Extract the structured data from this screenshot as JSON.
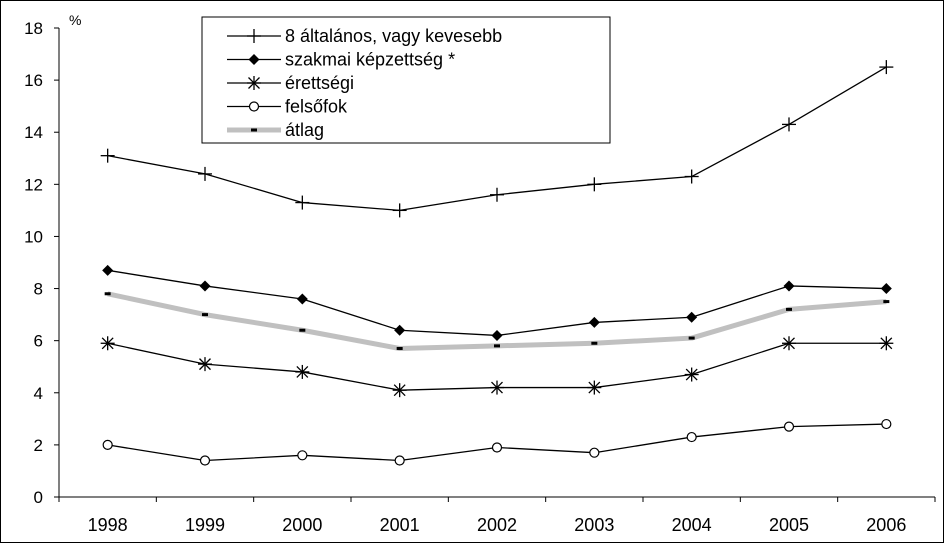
{
  "chart_data": {
    "type": "line",
    "title": "",
    "xlabel": "",
    "ylabel": "%",
    "x": [
      "1998",
      "1999",
      "2000",
      "2001",
      "2002",
      "2003",
      "2004",
      "2005",
      "2006"
    ],
    "ylim": [
      0,
      18
    ],
    "yticks": [
      "0",
      "2",
      "4",
      "6",
      "8",
      "10",
      "12",
      "14",
      "16",
      "18"
    ],
    "grid": false,
    "legend_position": "top-center",
    "series": [
      {
        "name": "8 általános, vagy kevesebb",
        "marker": "plus",
        "color": "#000000",
        "values": [
          13.1,
          12.4,
          11.3,
          11.0,
          11.6,
          12.0,
          12.3,
          14.3,
          16.5
        ]
      },
      {
        "name": "szakmai képzettség *",
        "marker": "diamond",
        "color": "#000000",
        "values": [
          8.7,
          8.1,
          7.6,
          6.4,
          6.2,
          6.7,
          6.9,
          8.1,
          8.0
        ]
      },
      {
        "name": "érettségi",
        "marker": "asterisk",
        "color": "#000000",
        "values": [
          5.9,
          5.1,
          4.8,
          4.1,
          4.2,
          4.2,
          4.7,
          5.9,
          5.9
        ]
      },
      {
        "name": "felsőfok",
        "marker": "circle",
        "color": "#000000",
        "values": [
          2.0,
          1.4,
          1.6,
          1.4,
          1.9,
          1.7,
          2.3,
          2.7,
          2.8
        ]
      },
      {
        "name": "átlag",
        "marker": "dash",
        "color": "#c0c0c0",
        "values": [
          7.8,
          7.0,
          6.4,
          5.7,
          5.8,
          5.9,
          6.1,
          7.2,
          7.5
        ]
      }
    ]
  }
}
